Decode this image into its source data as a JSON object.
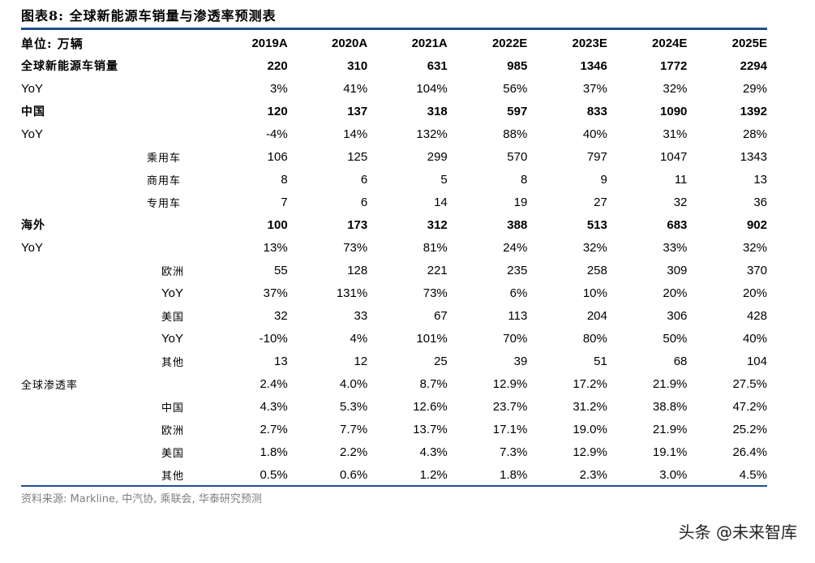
{
  "title": "图表8:  全球新能源车销量与渗透率预测表",
  "unit_label": "单位: 万辆",
  "columns": [
    "2019A",
    "2020A",
    "2021A",
    "2022E",
    "2023E",
    "2024E",
    "2025E"
  ],
  "rows": [
    {
      "label": "全球新能源车销量",
      "values": [
        "220",
        "310",
        "631",
        "985",
        "1346",
        "1772",
        "2294"
      ]
    },
    {
      "label": "YoY",
      "values": [
        "3%",
        "41%",
        "104%",
        "56%",
        "37%",
        "32%",
        "29%"
      ]
    },
    {
      "label": "中国",
      "values": [
        "120",
        "137",
        "318",
        "597",
        "833",
        "1090",
        "1392"
      ]
    },
    {
      "label": "YoY",
      "values": [
        "-4%",
        "14%",
        "132%",
        "88%",
        "40%",
        "31%",
        "28%"
      ]
    },
    {
      "label": "乘用车",
      "values": [
        "106",
        "125",
        "299",
        "570",
        "797",
        "1047",
        "1343"
      ]
    },
    {
      "label": "商用车",
      "values": [
        "8",
        "6",
        "5",
        "8",
        "9",
        "11",
        "13"
      ]
    },
    {
      "label": "专用车",
      "values": [
        "7",
        "6",
        "14",
        "19",
        "27",
        "32",
        "36"
      ]
    },
    {
      "label": "海外",
      "values": [
        "100",
        "173",
        "312",
        "388",
        "513",
        "683",
        "902"
      ]
    },
    {
      "label": "YoY",
      "values": [
        "13%",
        "73%",
        "81%",
        "24%",
        "32%",
        "33%",
        "32%"
      ]
    },
    {
      "label": "欧洲",
      "values": [
        "55",
        "128",
        "221",
        "235",
        "258",
        "309",
        "370"
      ]
    },
    {
      "label": "YoY",
      "values": [
        "37%",
        "131%",
        "73%",
        "6%",
        "10%",
        "20%",
        "20%"
      ]
    },
    {
      "label": "美国",
      "values": [
        "32",
        "33",
        "67",
        "113",
        "204",
        "306",
        "428"
      ]
    },
    {
      "label": "YoY",
      "values": [
        "-10%",
        "4%",
        "101%",
        "70%",
        "80%",
        "50%",
        "40%"
      ]
    },
    {
      "label": "其他",
      "values": [
        "13",
        "12",
        "25",
        "39",
        "51",
        "68",
        "104"
      ]
    },
    {
      "label": "全球渗透率",
      "values": [
        "2.4%",
        "4.0%",
        "8.7%",
        "12.9%",
        "17.2%",
        "21.9%",
        "27.5%"
      ]
    },
    {
      "label": "中国",
      "values": [
        "4.3%",
        "5.3%",
        "12.6%",
        "23.7%",
        "31.2%",
        "38.8%",
        "47.2%"
      ]
    },
    {
      "label": "欧洲",
      "values": [
        "2.7%",
        "7.7%",
        "13.7%",
        "17.1%",
        "19.0%",
        "21.9%",
        "25.2%"
      ]
    },
    {
      "label": "美国",
      "values": [
        "1.8%",
        "2.2%",
        "4.3%",
        "7.3%",
        "12.9%",
        "19.1%",
        "26.4%"
      ]
    },
    {
      "label": "其他",
      "values": [
        "0.5%",
        "0.6%",
        "1.2%",
        "1.8%",
        "2.3%",
        "3.0%",
        "4.5%"
      ]
    }
  ],
  "source": "资料来源: Markline, 中汽协, 乘联会, 华泰研究预测",
  "watermark": "头条 @未来智库",
  "colors": {
    "rule": "#1f4e8c",
    "source_text": "#7f7f7f"
  }
}
